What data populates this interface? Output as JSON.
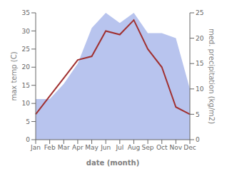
{
  "chart_data": {
    "type": "line",
    "categories": [
      "Jan",
      "Feb",
      "Mar",
      "Apr",
      "May",
      "Jun",
      "Jul",
      "Aug",
      "Sep",
      "Oct",
      "Nov",
      "Dec"
    ],
    "series": [
      {
        "type": "area",
        "axis": "y2",
        "color": "#b8c4ee",
        "values": [
          8,
          8,
          11,
          15,
          22,
          25,
          23,
          25,
          21,
          21,
          20,
          10
        ]
      },
      {
        "type": "line",
        "color": "#a03030",
        "values": [
          7,
          12,
          17,
          22,
          23,
          30,
          29,
          33,
          25,
          20,
          9,
          7
        ]
      }
    ],
    "xlabel": "date (month)",
    "ylabel": "max temp (C)",
    "y2label": "med. precipitation (kg/m2)",
    "ylim": [
      0,
      35
    ],
    "yticks": [
      0,
      5,
      10,
      15,
      20,
      25,
      30,
      35
    ],
    "y2lim": [
      0,
      25
    ],
    "y2ticks": [
      0,
      5,
      10,
      15,
      20,
      25
    ],
    "grid": false
  }
}
